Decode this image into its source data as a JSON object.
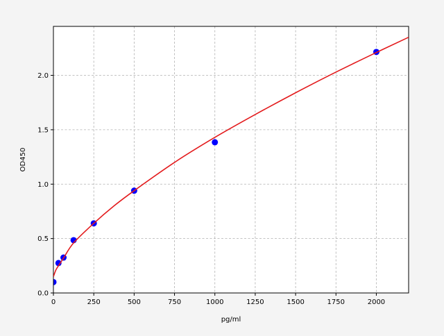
{
  "chart_data": {
    "type": "scatter",
    "title": "",
    "xlabel": "pg/ml",
    "ylabel": "OD450",
    "xlim": [
      0,
      2200
    ],
    "ylim": [
      0,
      2.45
    ],
    "grid": true,
    "xticks": [
      0,
      250,
      500,
      750,
      1000,
      1250,
      1500,
      1750,
      2000
    ],
    "xtick_labels": [
      "0",
      "250",
      "500",
      "750",
      "1000",
      "1250",
      "1500",
      "1750",
      "2000"
    ],
    "yticks": [
      0,
      0.5,
      1.0,
      1.5,
      2.0
    ],
    "ytick_labels": [
      "0.0",
      "0.5",
      "1.0",
      "1.5",
      "2.0"
    ],
    "points": {
      "color": "#0000ff",
      "x": [
        0,
        31.25,
        62.5,
        125,
        250,
        500,
        1000,
        2000
      ],
      "y": [
        0.1,
        0.275,
        0.325,
        0.485,
        0.64,
        0.94,
        1.385,
        2.215
      ]
    },
    "fit_curve": {
      "color": "#e31a1c",
      "x": [
        0,
        15,
        31.25,
        62.5,
        125,
        250,
        375,
        500,
        750,
        1000,
        1250,
        1500,
        1750,
        2000,
        2200
      ],
      "y": [
        0.15,
        0.21,
        0.25,
        0.32,
        0.46,
        0.64,
        0.8,
        0.94,
        1.2,
        1.43,
        1.64,
        1.84,
        2.03,
        2.21,
        2.35
      ]
    }
  }
}
